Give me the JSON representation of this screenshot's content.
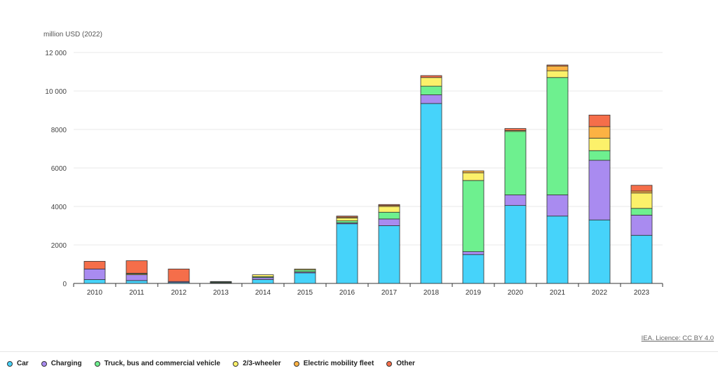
{
  "chart_data": {
    "type": "bar",
    "stacked": true,
    "ylabel": "million USD (2022)",
    "ylim": [
      0,
      12000
    ],
    "yticks": [
      0,
      2000,
      4000,
      6000,
      8000,
      10000,
      12000
    ],
    "ytick_labels": [
      "0",
      "2000",
      "4000",
      "6000",
      "8000",
      "10 000",
      "12 000"
    ],
    "categories": [
      "2010",
      "2011",
      "2012",
      "2013",
      "2014",
      "2015",
      "2016",
      "2017",
      "2018",
      "2019",
      "2020",
      "2021",
      "2022",
      "2023"
    ],
    "grid": true,
    "legend_position": "bottom-left",
    "series": [
      {
        "name": "Car",
        "color": "#46d3fa",
        "values": [
          200,
          150,
          50,
          30,
          200,
          550,
          3100,
          3000,
          9350,
          1500,
          4050,
          3500,
          3300,
          2500
        ]
      },
      {
        "name": "Charging",
        "color": "#a98bf0",
        "values": [
          550,
          300,
          50,
          20,
          100,
          50,
          50,
          350,
          450,
          150,
          550,
          1100,
          3100,
          1050
        ]
      },
      {
        "name": "Truck, bus and commercial vehicle",
        "color": "#6ef08f",
        "values": [
          0,
          0,
          0,
          40,
          50,
          100,
          100,
          350,
          450,
          3700,
          3300,
          6100,
          500,
          350
        ]
      },
      {
        "name": "2/3-wheeler",
        "color": "#fcf16a",
        "values": [
          0,
          50,
          0,
          10,
          100,
          50,
          150,
          300,
          450,
          400,
          50,
          350,
          650,
          800
        ]
      },
      {
        "name": "Electric mobility fleet",
        "color": "#fcb243",
        "values": [
          0,
          30,
          0,
          0,
          0,
          0,
          50,
          50,
          0,
          100,
          0,
          250,
          600,
          100
        ]
      },
      {
        "name": "Other",
        "color": "#f56e4a",
        "values": [
          400,
          650,
          650,
          0,
          0,
          0,
          50,
          50,
          100,
          0,
          100,
          50,
          600,
          300
        ]
      }
    ]
  },
  "credit": "IEA. Licence: CC BY 4.0"
}
